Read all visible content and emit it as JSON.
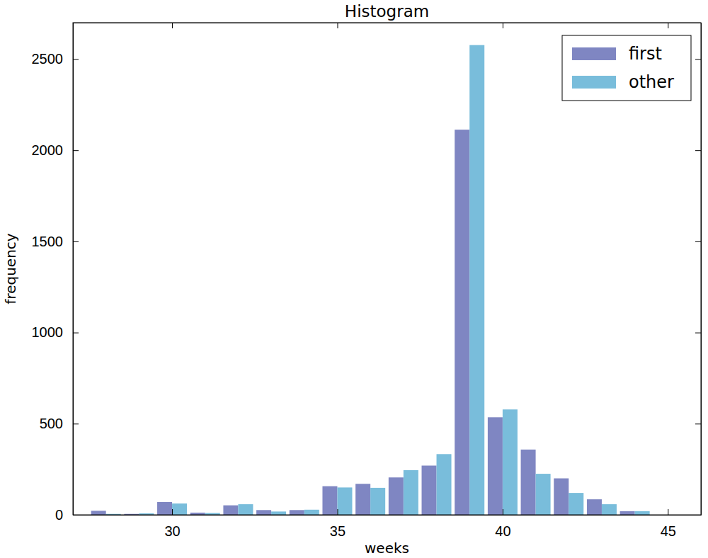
{
  "chart_data": {
    "type": "bar",
    "title": "Histogram",
    "x_label": "weeks",
    "y_label": "frequency",
    "x": [
      28,
      29,
      30,
      31,
      32,
      33,
      34,
      35,
      36,
      37,
      38,
      39,
      40,
      41,
      42,
      43,
      44
    ],
    "series": [
      {
        "name": "first",
        "color": "#7f86c2",
        "values": [
          22,
          5,
          70,
          12,
          52,
          26,
          26,
          157,
          170,
          205,
          270,
          2113,
          535,
          358,
          200,
          85,
          20
        ]
      },
      {
        "name": "other",
        "color": "#79bddb",
        "values": [
          5,
          8,
          62,
          10,
          58,
          18,
          28,
          150,
          148,
          245,
          333,
          2577,
          578,
          225,
          120,
          58,
          20
        ]
      }
    ],
    "xlim": [
      27,
      46
    ],
    "xticks": [
      30,
      35,
      40,
      45
    ],
    "ylim": [
      0,
      2700
    ],
    "yticks": [
      0,
      500,
      1000,
      1500,
      2000,
      2500
    ],
    "grid": false,
    "legend": "upper right"
  }
}
